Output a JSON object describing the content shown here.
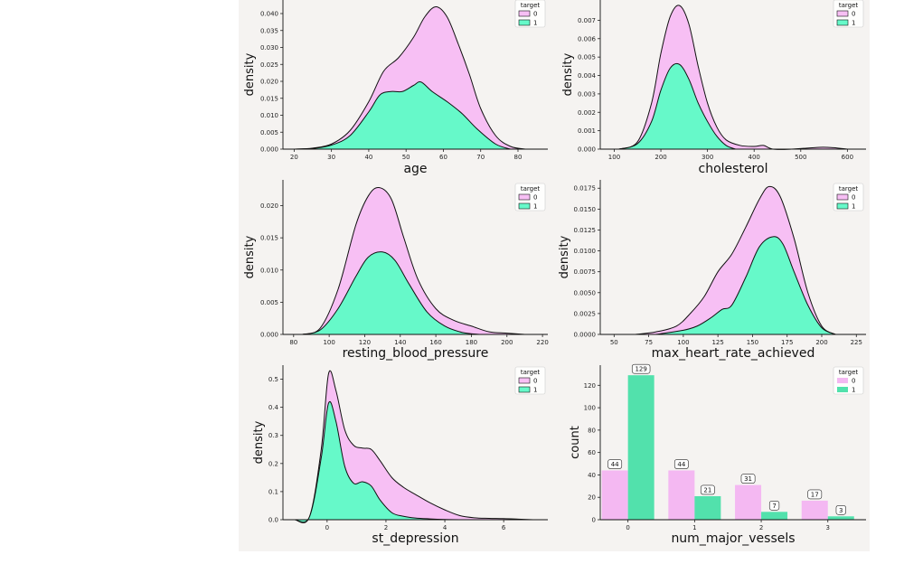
{
  "colors": {
    "class0": "#f7bff4",
    "class1": "#66f9c9",
    "bar0": "#f4b8f2",
    "bar1": "#52e1ac",
    "background": "#f5f3f1"
  },
  "chart_data": [
    {
      "type": "area",
      "name": "age",
      "xlabel": "age",
      "ylabel": "density",
      "xlim": [
        17,
        88
      ],
      "ylim": [
        0,
        0.044
      ],
      "xticks": [
        20,
        30,
        40,
        50,
        60,
        70,
        80
      ],
      "yticks": [
        0.0,
        0.005,
        0.01,
        0.015,
        0.02,
        0.025,
        0.03,
        0.035,
        0.04
      ],
      "ytick_labels": [
        "0.000",
        "0.005",
        "0.010",
        "0.015",
        "0.020",
        "0.025",
        "0.030",
        "0.035",
        "0.040"
      ],
      "legend": {
        "title": "target",
        "entries": [
          "0",
          "1"
        ]
      },
      "series": [
        {
          "name": "0 (stacked total)",
          "x": [
            20,
            25,
            30,
            35,
            40,
            44,
            48,
            52,
            55,
            58,
            61,
            64,
            67,
            70,
            74,
            78,
            82
          ],
          "values": [
            0,
            0.0003,
            0.0015,
            0.0055,
            0.014,
            0.023,
            0.027,
            0.033,
            0.039,
            0.042,
            0.039,
            0.031,
            0.022,
            0.012,
            0.004,
            0.0008,
            0
          ]
        },
        {
          "name": "1",
          "x": [
            20,
            25,
            30,
            35,
            40,
            43,
            46,
            49,
            52,
            54,
            57,
            61,
            65,
            69,
            74,
            78
          ],
          "values": [
            0,
            0.0002,
            0.0012,
            0.004,
            0.011,
            0.016,
            0.017,
            0.017,
            0.0188,
            0.0198,
            0.017,
            0.014,
            0.0105,
            0.006,
            0.0015,
            0
          ]
        }
      ]
    },
    {
      "type": "area",
      "name": "cholesterol",
      "xlabel": "cholesterol",
      "ylabel": "density",
      "xlim": [
        70,
        640
      ],
      "ylim": [
        0,
        0.0081
      ],
      "xticks": [
        100,
        200,
        300,
        400,
        500,
        600
      ],
      "yticks": [
        0.0,
        0.001,
        0.002,
        0.003,
        0.004,
        0.005,
        0.006,
        0.007
      ],
      "ytick_labels": [
        "0.000",
        "0.001",
        "0.002",
        "0.003",
        "0.004",
        "0.005",
        "0.006",
        "0.007"
      ],
      "legend": {
        "title": "target",
        "entries": [
          "0",
          "1"
        ]
      },
      "series": [
        {
          "name": "0 (stacked total)",
          "x": [
            110,
            150,
            180,
            200,
            220,
            240,
            260,
            280,
            300,
            320,
            340,
            370,
            400,
            420,
            440,
            480,
            540,
            570,
            600
          ],
          "values": [
            0,
            0.0004,
            0.0025,
            0.0052,
            0.0072,
            0.0078,
            0.0068,
            0.0045,
            0.0025,
            0.0012,
            0.0005,
            0.0002,
            0.00015,
            0.0002,
            0,
            0,
            0.0001,
            8e-05,
            0
          ]
        },
        {
          "name": "1",
          "x": [
            110,
            150,
            180,
            200,
            220,
            240,
            260,
            280,
            300,
            320,
            340,
            360
          ],
          "values": [
            0,
            0.0003,
            0.0015,
            0.0032,
            0.0044,
            0.0046,
            0.0038,
            0.0025,
            0.0015,
            0.0007,
            0.0002,
            0
          ]
        }
      ]
    },
    {
      "type": "area",
      "name": "resting_blood_pressure",
      "xlabel": "resting_blood_pressure",
      "ylabel": "density",
      "xlim": [
        74,
        223
      ],
      "ylim": [
        0,
        0.024
      ],
      "xticks": [
        80,
        100,
        120,
        140,
        160,
        180,
        200,
        220
      ],
      "yticks": [
        0.0,
        0.005,
        0.01,
        0.015,
        0.02
      ],
      "ytick_labels": [
        "0.000",
        "0.005",
        "0.010",
        "0.015",
        "0.020"
      ],
      "legend": {
        "title": "target",
        "entries": [
          "0",
          "1"
        ]
      },
      "series": [
        {
          "name": "0 (stacked total)",
          "x": [
            85,
            95,
            105,
            115,
            122,
            128,
            135,
            142,
            150,
            160,
            170,
            180,
            190,
            200,
            210
          ],
          "values": [
            0,
            0.001,
            0.007,
            0.017,
            0.0215,
            0.0228,
            0.021,
            0.015,
            0.0085,
            0.004,
            0.0022,
            0.0013,
            0.0004,
            0.0002,
            0
          ]
        },
        {
          "name": "1",
          "x": [
            85,
            95,
            105,
            115,
            122,
            130,
            137,
            145,
            155,
            165,
            175,
            185
          ],
          "values": [
            0,
            0.0007,
            0.004,
            0.009,
            0.012,
            0.0128,
            0.0115,
            0.0078,
            0.0035,
            0.0013,
            0.0003,
            0
          ]
        }
      ]
    },
    {
      "type": "area",
      "name": "max_heart_rate_achieved",
      "xlabel": "max_heart_rate_achieved",
      "ylabel": "density",
      "xlim": [
        40,
        232
      ],
      "ylim": [
        0,
        0.0185
      ],
      "xticks": [
        50,
        75,
        100,
        125,
        150,
        175,
        200,
        225
      ],
      "yticks": [
        0.0,
        0.0025,
        0.005,
        0.0075,
        0.01,
        0.0125,
        0.015,
        0.0175
      ],
      "ytick_labels": [
        "0.0000",
        "0.0025",
        "0.0050",
        "0.0075",
        "0.0100",
        "0.0125",
        "0.0150",
        "0.0175"
      ],
      "legend": {
        "title": "target",
        "entries": [
          "0",
          "1"
        ]
      },
      "series": [
        {
          "name": "0 (stacked total)",
          "x": [
            65,
            80,
            95,
            105,
            115,
            125,
            135,
            145,
            155,
            162,
            170,
            180,
            190,
            200,
            210
          ],
          "values": [
            0,
            0.0003,
            0.001,
            0.0025,
            0.0045,
            0.0075,
            0.0096,
            0.0128,
            0.0162,
            0.0177,
            0.0165,
            0.0115,
            0.005,
            0.001,
            0
          ]
        },
        {
          "name": "1",
          "x": [
            80,
            100,
            110,
            120,
            128,
            135,
            145,
            155,
            165,
            172,
            180,
            190,
            200,
            210
          ],
          "values": [
            0,
            0.0005,
            0.001,
            0.002,
            0.003,
            0.0035,
            0.0068,
            0.0105,
            0.0117,
            0.0108,
            0.0075,
            0.0035,
            0.0008,
            0
          ]
        }
      ]
    },
    {
      "type": "area",
      "name": "st_depression",
      "xlabel": "st_depression",
      "ylabel": "density",
      "xlim": [
        -1.5,
        7.5
      ],
      "ylim": [
        0,
        0.55
      ],
      "xticks": [
        0,
        2,
        4,
        6
      ],
      "yticks": [
        0.0,
        0.1,
        0.2,
        0.3,
        0.4,
        0.5
      ],
      "ytick_labels": [
        "0.0",
        "0.1",
        "0.2",
        "0.3",
        "0.4",
        "0.5"
      ],
      "legend": {
        "title": "target",
        "entries": [
          "0",
          "1"
        ]
      },
      "series": [
        {
          "name": "0 (stacked total)",
          "x": [
            -1.1,
            -0.6,
            -0.2,
            0.05,
            0.3,
            0.6,
            0.9,
            1.2,
            1.5,
            1.8,
            2.2,
            2.6,
            3,
            3.5,
            4,
            4.5,
            5,
            5.5,
            6,
            6.5,
            7
          ],
          "values": [
            0,
            0.01,
            0.25,
            0.52,
            0.46,
            0.32,
            0.265,
            0.255,
            0.25,
            0.21,
            0.15,
            0.115,
            0.09,
            0.06,
            0.035,
            0.015,
            0.007,
            0.005,
            0.004,
            0.002,
            0
          ]
        },
        {
          "name": "1",
          "x": [
            -1.1,
            -0.6,
            -0.2,
            0.05,
            0.3,
            0.6,
            0.9,
            1.2,
            1.5,
            1.8,
            2.2,
            2.6,
            3,
            3.5,
            4,
            4.5
          ],
          "values": [
            0,
            0.01,
            0.22,
            0.415,
            0.35,
            0.19,
            0.13,
            0.135,
            0.12,
            0.07,
            0.025,
            0.012,
            0.006,
            0.003,
            0.001,
            0
          ]
        }
      ]
    },
    {
      "type": "bar",
      "name": "num_major_vessels",
      "xlabel": "num_major_vessels",
      "ylabel": "count",
      "categories": [
        "0",
        "1",
        "2",
        "3"
      ],
      "ylim": [
        0,
        138
      ],
      "yticks": [
        0,
        20,
        40,
        60,
        80,
        100,
        120
      ],
      "ytick_labels": [
        "0",
        "20",
        "40",
        "60",
        "80",
        "100",
        "120"
      ],
      "legend": {
        "title": "target",
        "entries": [
          "0",
          "1"
        ]
      },
      "series": [
        {
          "name": "0",
          "values": [
            44,
            44,
            31,
            17
          ],
          "labels": [
            "44",
            "44",
            "31",
            "17"
          ]
        },
        {
          "name": "1",
          "values": [
            129,
            21,
            7,
            3
          ],
          "labels": [
            "129",
            "21",
            "7",
            "3"
          ]
        }
      ]
    }
  ]
}
